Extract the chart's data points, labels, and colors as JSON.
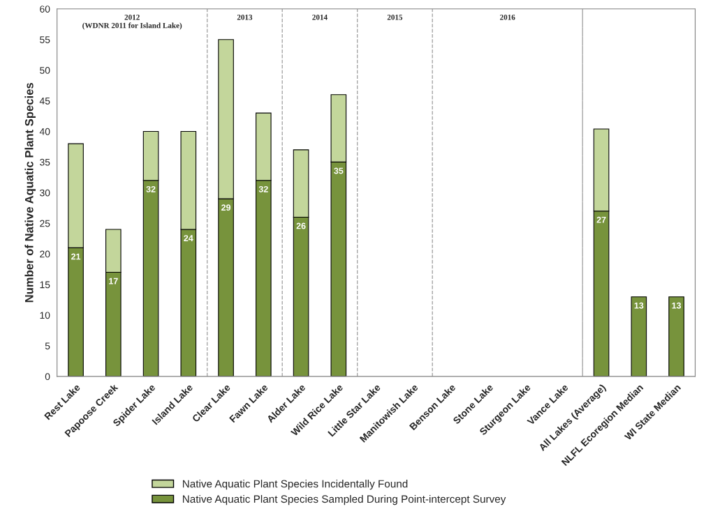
{
  "chart_data": {
    "type": "bar",
    "stacked": true,
    "ylabel": "Number of Native Aquatic Plant Species",
    "categories": [
      "Rest Lake",
      "Papoose Creek",
      "Spider Lake",
      "Island Lake",
      "Clear Lake",
      "Fawn Lake",
      "Alder Lake",
      "Wild Rice Lake",
      "Little Star Lake",
      "Manitowish Lake",
      "Benson Lake",
      "Stone Lake",
      "Sturgeon Lake",
      "Vance Lake",
      "All Lakes (Average)",
      "NLFL Ecoregion Median",
      "WI State Median"
    ],
    "series": [
      {
        "name": "Native Aquatic Plant Species Sampled During Point-intercept Survey",
        "color": "#77933c",
        "values": [
          21,
          17,
          32,
          24,
          29,
          32,
          26,
          35,
          null,
          null,
          null,
          null,
          null,
          null,
          27,
          13,
          13
        ],
        "value_labels": [
          "21",
          "17",
          "32",
          "24",
          "29",
          "32",
          "26",
          "35",
          null,
          null,
          null,
          null,
          null,
          null,
          "27",
          "13",
          "13"
        ]
      },
      {
        "name": "Native Aquatic Plant Species Incidentally Found",
        "color": "#c3d69b",
        "values": [
          17,
          7,
          8,
          16,
          26,
          11,
          11,
          11,
          null,
          null,
          null,
          null,
          null,
          null,
          13.4,
          null,
          null
        ]
      }
    ],
    "ylim": [
      0,
      60
    ],
    "yticks": [
      0,
      5,
      10,
      15,
      20,
      25,
      30,
      35,
      40,
      45,
      50,
      55,
      60
    ],
    "grid": false,
    "legend": "bottom",
    "annotations": [
      "2012\n(WDNR 2011 for Island Lake)",
      "2013",
      "2014",
      "2015",
      "2016"
    ]
  }
}
